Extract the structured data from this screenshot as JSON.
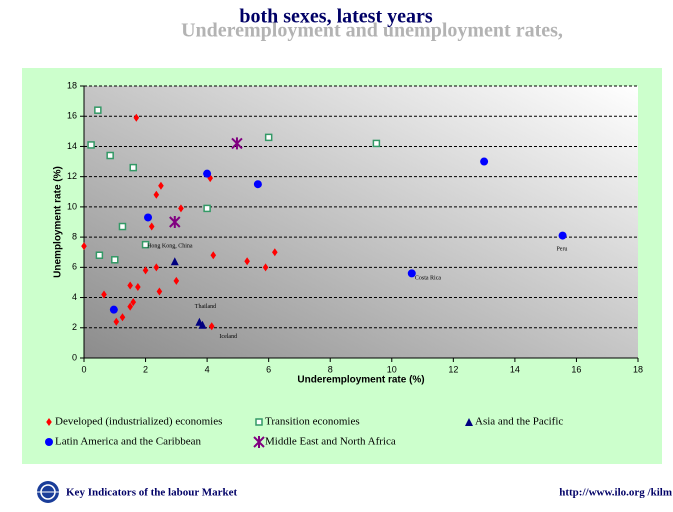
{
  "chart_data": {
    "type": "scatter",
    "title_lines": [
      "Underemployment and unemployment rates,",
      "both sexes, latest years"
    ],
    "x_label": "Underemployment rate (%)",
    "y_label": "Unemployment rate (%)",
    "xlim": [
      0,
      18
    ],
    "xticks": [
      0,
      2,
      4,
      6,
      8,
      10,
      12,
      14,
      16,
      18
    ],
    "ylim": [
      0,
      18
    ],
    "yticks": [
      0,
      2,
      4,
      6,
      8,
      10,
      12,
      14,
      16,
      18
    ],
    "grid": true,
    "series": [
      {
        "name": "Developed (industrialized) economies",
        "color": "#ff0000",
        "marker": "diamond",
        "x": [
          2.5,
          2.35,
          3.15,
          2.2,
          4.1,
          4.2,
          5.3,
          5.9,
          6.2,
          2.0,
          2.35,
          1.5,
          1.75,
          3.0,
          2.45,
          1.6,
          1.5,
          1.25,
          1.05,
          4.15,
          0.0,
          0.65,
          1.7
        ],
        "values": [
          11.4,
          10.8,
          9.9,
          8.7,
          11.9,
          6.8,
          6.4,
          6.0,
          7.0,
          5.8,
          6.0,
          4.8,
          4.7,
          5.1,
          4.4,
          3.7,
          3.4,
          2.7,
          2.4,
          2.1,
          7.4,
          4.2,
          15.9
        ]
      },
      {
        "name": "Transition economies",
        "color": "#339966",
        "marker": "square",
        "x": [
          0.45,
          0.23,
          0.85,
          1.6,
          6.0,
          9.5,
          1.25,
          2.0,
          4.0,
          0.5,
          1.0
        ],
        "values": [
          16.4,
          14.1,
          13.4,
          12.6,
          14.6,
          14.2,
          8.7,
          7.5,
          9.9,
          6.8,
          6.5
        ]
      },
      {
        "name": "Asia and the Pacific",
        "color": "#000080",
        "marker": "triangle",
        "x": [
          2.95,
          3.75,
          3.85
        ],
        "values": [
          6.4,
          2.4,
          2.2
        ]
      },
      {
        "name": "Latin America and the Caribbean",
        "color": "#0000ff",
        "marker": "circle",
        "x": [
          4.0,
          5.65,
          2.08,
          13.0,
          15.55,
          10.65,
          0.97
        ],
        "values": [
          12.2,
          11.5,
          9.3,
          13.0,
          8.1,
          5.6,
          3.2
        ]
      },
      {
        "name": "Middle East and North Africa",
        "color": "#800080",
        "marker": "star",
        "x": [
          4.97,
          2.95
        ],
        "values": [
          14.2,
          9.0
        ]
      }
    ],
    "annotations": [
      {
        "text": "Hong Kong, China",
        "x": 2.05,
        "y": 7.4
      },
      {
        "text": "Peru",
        "x": 15.35,
        "y": 7.2
      },
      {
        "text": "Costa Rica",
        "x": 10.75,
        "y": 5.3
      },
      {
        "text": "Thailand",
        "x": 3.6,
        "y": 3.4
      },
      {
        "text": "Iceland",
        "x": 4.4,
        "y": 1.4
      }
    ]
  },
  "footer": {
    "left": "Key Indicators of the labour Market",
    "right": "http://www.ilo.org /kilm"
  }
}
